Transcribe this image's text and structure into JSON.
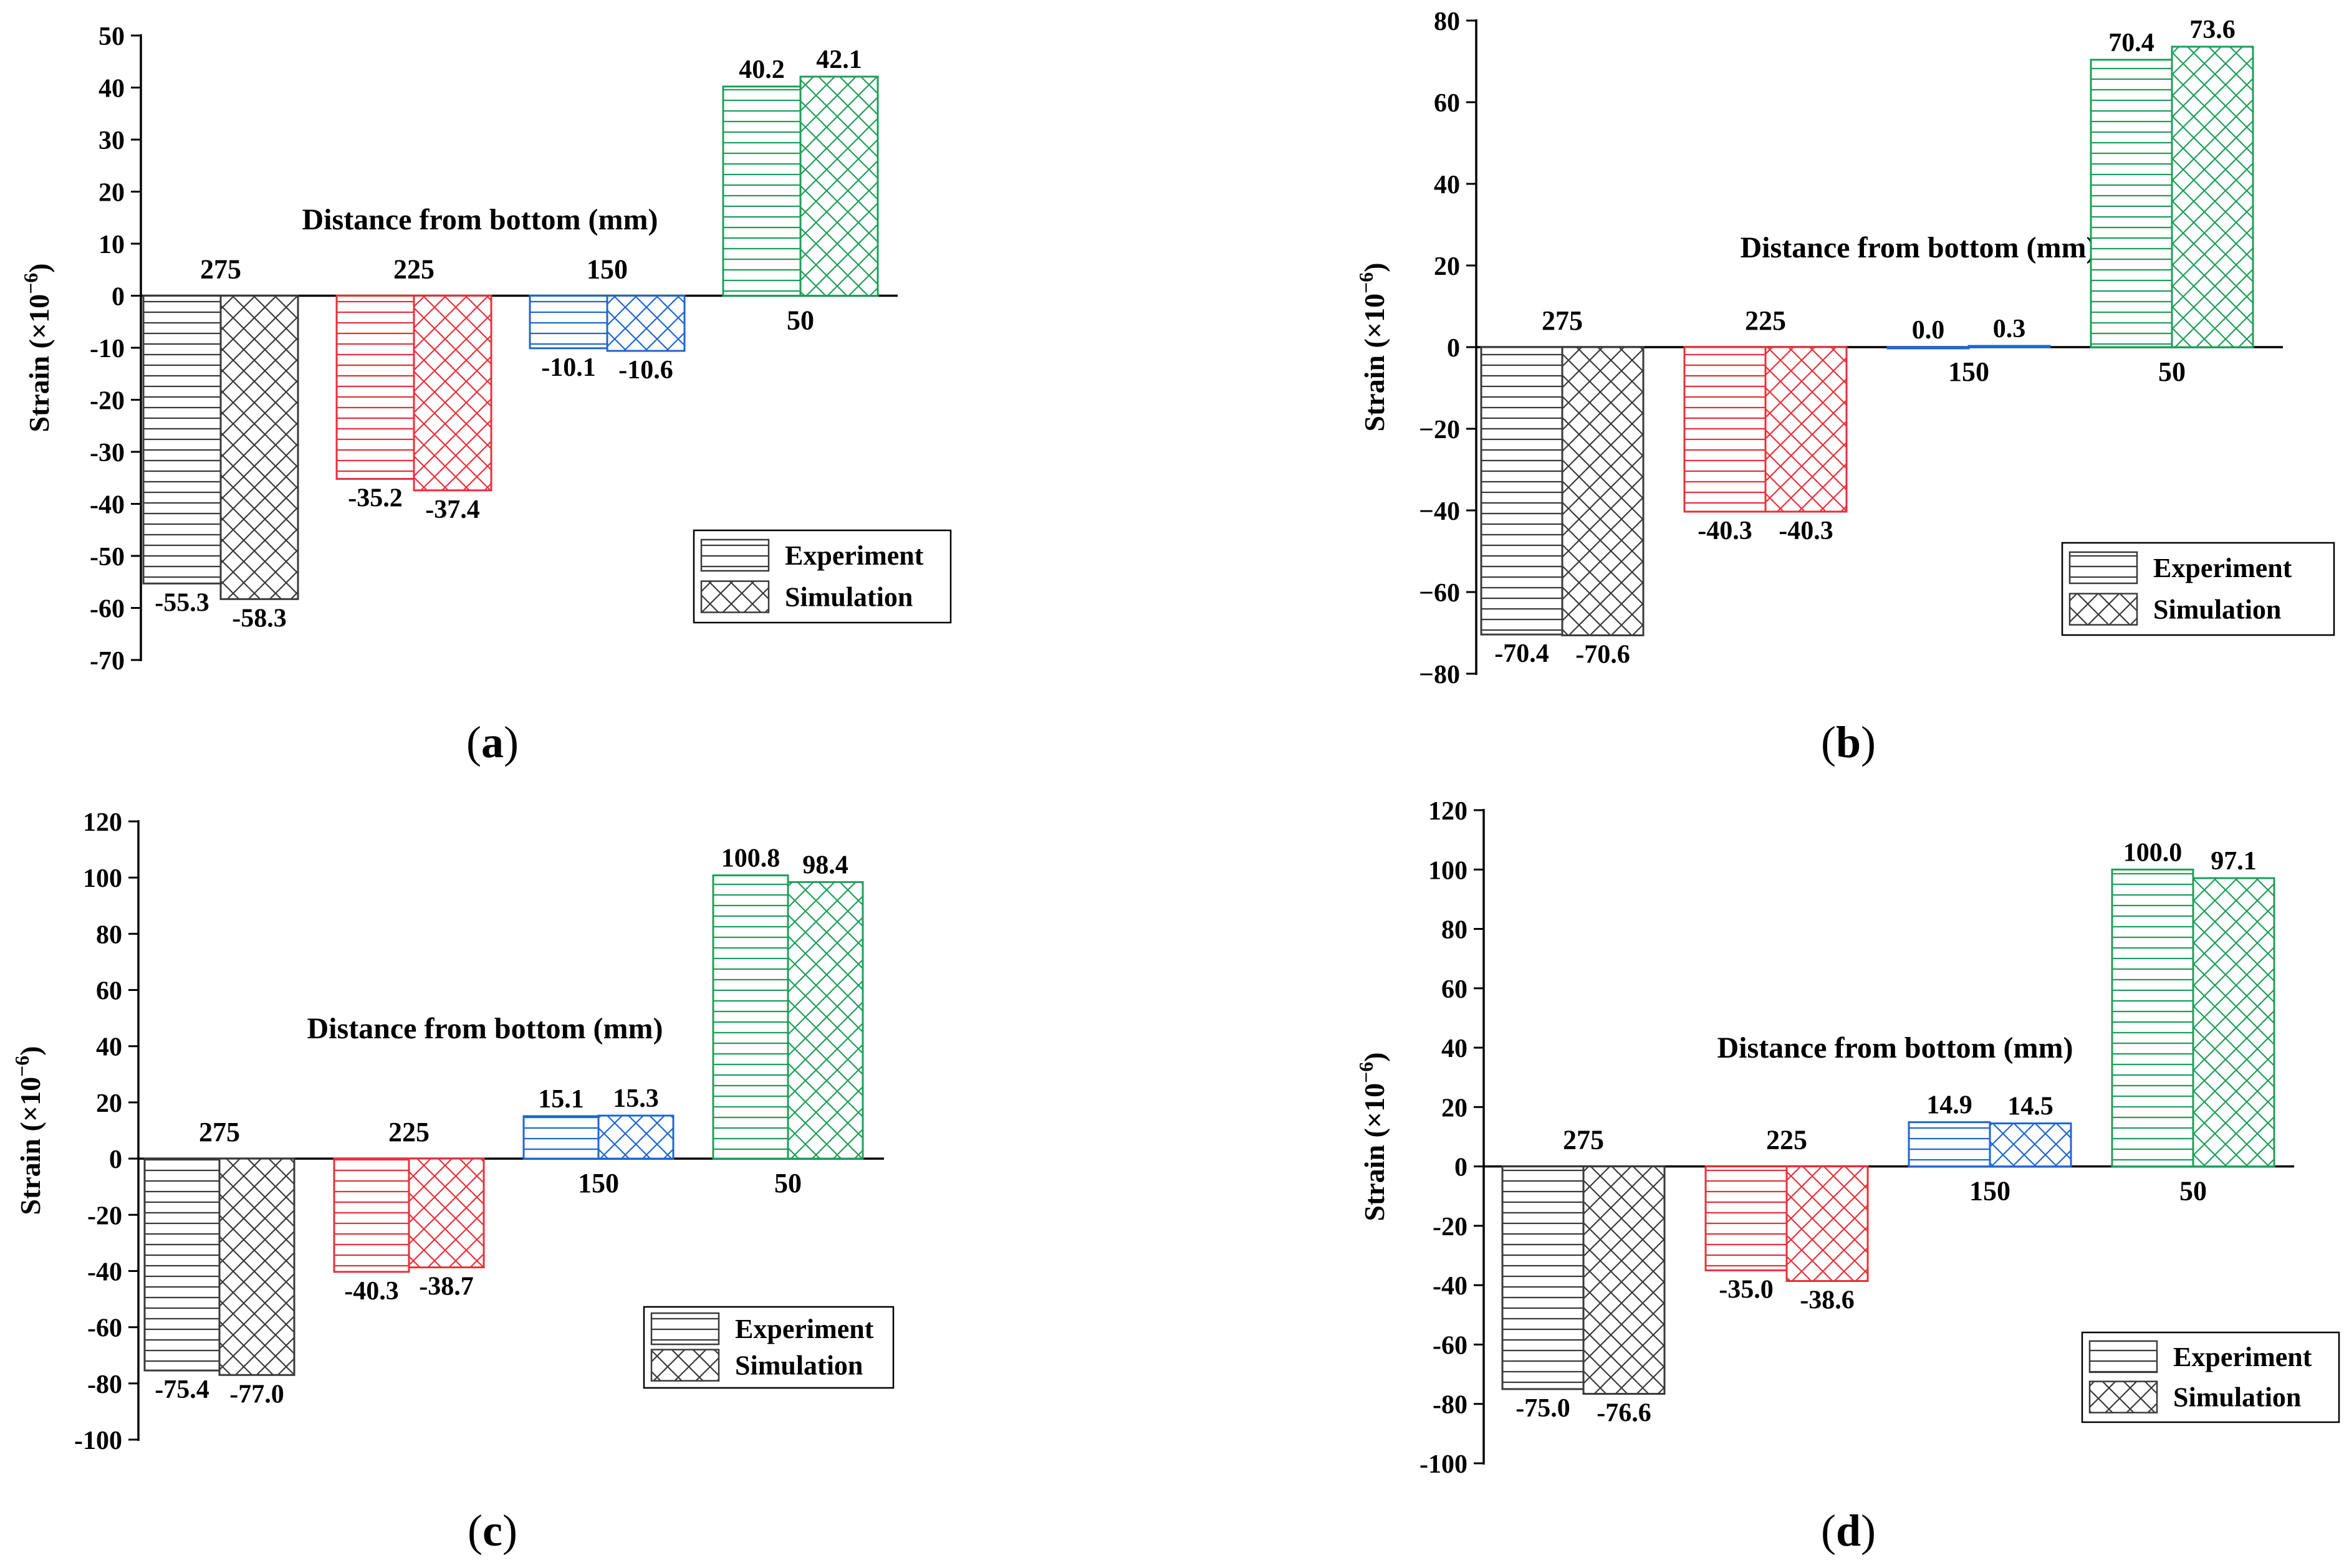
{
  "chart_data": [
    {
      "type": "bar",
      "panel": "a",
      "title": "Distance from bottom  (mm)",
      "ylabel": "Strain (×10",
      "ylabel_exp": "−6",
      "categories": [
        "275",
        "225",
        "150",
        "50"
      ],
      "colors": [
        "#3a3a3a",
        "#e8303a",
        "#1f66d1",
        "#1f9e5a"
      ],
      "series": [
        {
          "name": "Experiment",
          "pattern": "horizontal-lines",
          "values": [
            -55.3,
            -35.2,
            -10.1,
            40.2
          ],
          "labels": [
            "-55.3",
            "-35.2",
            "-10.1",
            "40.2"
          ]
        },
        {
          "name": "Simulation",
          "pattern": "crosshatch",
          "values": [
            -58.3,
            -37.4,
            -10.6,
            42.1
          ],
          "labels": [
            "-58.3",
            "-37.4",
            "-10.6",
            "42.1"
          ]
        }
      ],
      "ylim": [
        -70,
        50
      ],
      "yticks": [
        50,
        40,
        30,
        20,
        10,
        0,
        -10,
        -20,
        -30,
        -40,
        -50,
        -60,
        -70
      ],
      "ytick_labels": [
        "50",
        "40",
        "30",
        "20",
        "10",
        "0",
        "-10",
        "-20",
        "-30",
        "-40",
        "-50",
        "-60",
        "-70"
      ],
      "legend": [
        "Experiment",
        "Simulation"
      ],
      "legend_position": "bottom-right",
      "grid": false
    },
    {
      "type": "bar",
      "panel": "b",
      "title": "Distance from bottom  (mm)",
      "ylabel": "Strain (×10",
      "ylabel_exp": "−6",
      "categories": [
        "275",
        "225",
        "150",
        "50"
      ],
      "colors": [
        "#3a3a3a",
        "#e8303a",
        "#1f66d1",
        "#1f9e5a"
      ],
      "series": [
        {
          "name": "Experiment",
          "pattern": "horizontal-lines",
          "values": [
            -70.4,
            -40.3,
            0.0,
            70.4
          ],
          "labels": [
            "-70.4",
            "-40.3",
            "0.0",
            "70.4"
          ]
        },
        {
          "name": "Simulation",
          "pattern": "crosshatch",
          "values": [
            -70.6,
            -40.3,
            0.3,
            73.6
          ],
          "labels": [
            "-70.6",
            "-40.3",
            "0.3",
            "73.6"
          ]
        }
      ],
      "ylim": [
        -80,
        80
      ],
      "yticks": [
        80,
        60,
        40,
        20,
        0,
        -20,
        -40,
        -60,
        -80
      ],
      "ytick_labels": [
        "80",
        "60",
        "40",
        "20",
        "0",
        "−20",
        "−40",
        "−60",
        "−80"
      ],
      "legend": [
        "Experiment",
        "Simulation"
      ],
      "legend_position": "bottom-right",
      "grid": false
    },
    {
      "type": "bar",
      "panel": "c",
      "title": "Distance from bottom (mm)",
      "ylabel": "Strain (×10",
      "ylabel_exp": "−6",
      "categories": [
        "275",
        "225",
        "150",
        "50"
      ],
      "colors": [
        "#3a3a3a",
        "#e8303a",
        "#1f66d1",
        "#1f9e5a"
      ],
      "series": [
        {
          "name": "Experiment",
          "pattern": "horizontal-lines",
          "values": [
            -75.4,
            -40.3,
            15.1,
            100.8
          ],
          "labels": [
            "-75.4",
            "-40.3",
            "15.1",
            "100.8"
          ]
        },
        {
          "name": "Simulation",
          "pattern": "crosshatch",
          "values": [
            -77.0,
            -38.7,
            15.3,
            98.4
          ],
          "labels": [
            "-77.0",
            "-38.7",
            "15.3",
            "98.4"
          ]
        }
      ],
      "ylim": [
        -100,
        120
      ],
      "yticks": [
        120,
        100,
        80,
        60,
        40,
        20,
        0,
        -20,
        -40,
        -60,
        -80,
        -100
      ],
      "ytick_labels": [
        "120",
        "100",
        "80",
        "60",
        "40",
        "20",
        "0",
        "-20",
        "-40",
        "-60",
        "-80",
        "-100"
      ],
      "legend": [
        "Experiment",
        "Simulation"
      ],
      "legend_position": "bottom-right",
      "grid": false
    },
    {
      "type": "bar",
      "panel": "d",
      "title": "Distance from bottom (mm)",
      "ylabel": "Strain (×10",
      "ylabel_exp": "−6",
      "categories": [
        "275",
        "225",
        "150",
        "50"
      ],
      "colors": [
        "#3a3a3a",
        "#e8303a",
        "#1f66d1",
        "#1f9e5a"
      ],
      "series": [
        {
          "name": "Experiment",
          "pattern": "horizontal-lines",
          "values": [
            -75.0,
            -35.0,
            14.9,
            100.0
          ],
          "labels": [
            "-75.0",
            "-35.0",
            "14.9",
            "100.0"
          ]
        },
        {
          "name": "Simulation",
          "pattern": "crosshatch",
          "values": [
            -76.6,
            -38.6,
            14.5,
            97.1
          ],
          "labels": [
            "-76.6",
            "-38.6",
            "14.5",
            "97.1"
          ]
        }
      ],
      "ylim": [
        -100,
        120
      ],
      "yticks": [
        120,
        100,
        80,
        60,
        40,
        20,
        0,
        -20,
        -40,
        -60,
        -80,
        -100
      ],
      "ytick_labels": [
        "120",
        "100",
        "80",
        "60",
        "40",
        "20",
        "0",
        "-20",
        "-40",
        "-60",
        "-80",
        "-100"
      ],
      "legend": [
        "Experiment",
        "Simulation"
      ],
      "legend_position": "bottom-right",
      "grid": false
    }
  ]
}
